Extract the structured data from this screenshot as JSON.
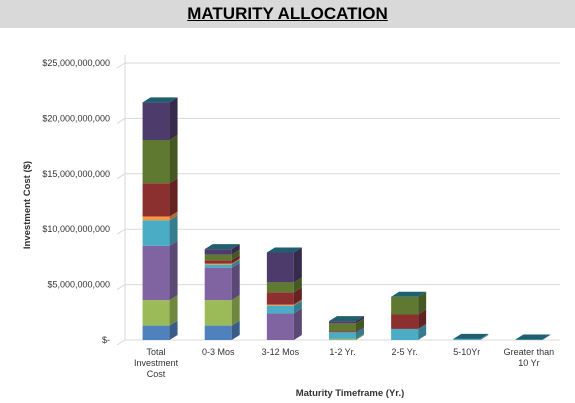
{
  "chart_data": {
    "type": "bar3d_stacked",
    "title": "MATURITY ALLOCATION",
    "xlabel": "Maturity Timeframe (Yr.)",
    "ylabel": "Investment Cost ($)",
    "categories": [
      "Total Investment Cost",
      "0-3 Mos",
      "3-12 Mos",
      "1-2 Yr.",
      "2-5 Yr.",
      "5-10Yr",
      "Greater than 10 Yr"
    ],
    "series": [
      {
        "color": "#4f81bd",
        "values": [
          1300000000,
          1300000000,
          0,
          0,
          0,
          0,
          0
        ]
      },
      {
        "color": "#9bbb59",
        "values": [
          2300000000,
          2300000000,
          0,
          100000000,
          0,
          0,
          0
        ]
      },
      {
        "color": "#8064a2",
        "values": [
          4900000000,
          2900000000,
          2400000000,
          0,
          0,
          0,
          0
        ]
      },
      {
        "color": "#4bacc6",
        "values": [
          2300000000,
          300000000,
          700000000,
          600000000,
          1000000000,
          100000000,
          50000000
        ]
      },
      {
        "color": "#f79646",
        "values": [
          350000000,
          100000000,
          100000000,
          0,
          0,
          0,
          0
        ]
      },
      {
        "color": "#8c2f2f",
        "values": [
          3000000000,
          300000000,
          1100000000,
          100000000,
          1300000000,
          0,
          0
        ]
      },
      {
        "color": "#5f7a30",
        "values": [
          3900000000,
          500000000,
          900000000,
          700000000,
          1600000000,
          0,
          0
        ]
      },
      {
        "color": "#4c3b6b",
        "values": [
          3400000000,
          500000000,
          2700000000,
          200000000,
          0,
          0,
          0
        ]
      }
    ],
    "ylim": [
      0,
      25000000000
    ],
    "yticks": [
      {
        "value": 0,
        "label": "$-"
      },
      {
        "value": 5000000000,
        "label": "$5,000,000,000"
      },
      {
        "value": 10000000000,
        "label": "$10,000,000,000"
      },
      {
        "value": 15000000000,
        "label": "$15,000,000,000"
      },
      {
        "value": 20000000000,
        "label": "$20,000,000,000"
      },
      {
        "value": 25000000000,
        "label": "$25,000,000,000"
      }
    ],
    "grid": true,
    "top_color": "#1f5f6f"
  }
}
